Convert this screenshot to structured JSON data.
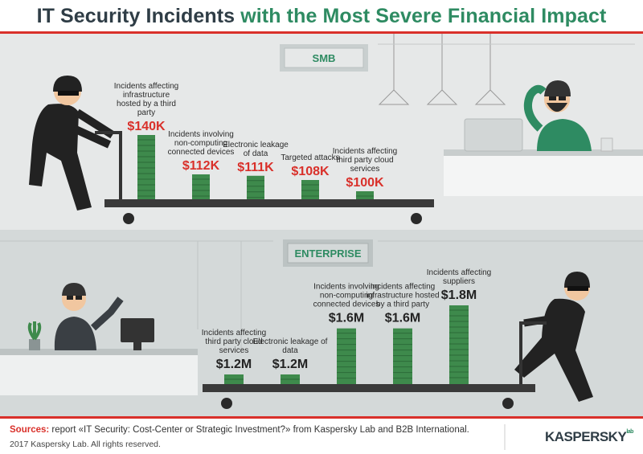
{
  "title": {
    "part1": "IT Security Incidents ",
    "part2": "with the Most Severe Financial Impact"
  },
  "colors": {
    "accent_red": "#d9302a",
    "accent_green": "#2e8b62",
    "money_green": "#3e8a4c",
    "dark": "#222222",
    "smb_bg": "#e5e7e7",
    "enterprise_bg": "#d4d9d9"
  },
  "chart_data": [
    {
      "type": "bar",
      "title": "SMB",
      "categories": [
        "Incidents affecting infrastructure hosted by a third party",
        "Incidents involving non-computing connected devices",
        "Electronic leakage of data",
        "Targeted attacks",
        "Incidents affecting third party cloud services"
      ],
      "values": [
        140,
        112,
        111,
        108,
        100
      ],
      "value_labels": [
        "$140K",
        "$112K",
        "$111K",
        "$108K",
        "$100K"
      ],
      "unit": "K"
    },
    {
      "type": "bar",
      "title": "ENTERPRISE",
      "categories": [
        "Incidents affecting third party cloud services",
        "Electronic leakage of data",
        "Incidents involving non-computing connected devices",
        "Incidents affecting infrastructure hosted by a third party",
        "Incidents affecting suppliers"
      ],
      "values": [
        1.2,
        1.2,
        1.6,
        1.6,
        1.8
      ],
      "value_labels": [
        "$1.2M",
        "$1.2M",
        "$1.6M",
        "$1.6M",
        "$1.8M"
      ],
      "unit": "M"
    }
  ],
  "footer": {
    "sources_label": "Sources:",
    "sources_text": " report «IT Security: Cost-Center or Strategic Investment?» from Kaspersky Lab and B2B International.",
    "copyright": "2017 Kaspersky Lab. All rights reserved.",
    "logo": "KASPERSKY",
    "logo_sub": "lab"
  }
}
